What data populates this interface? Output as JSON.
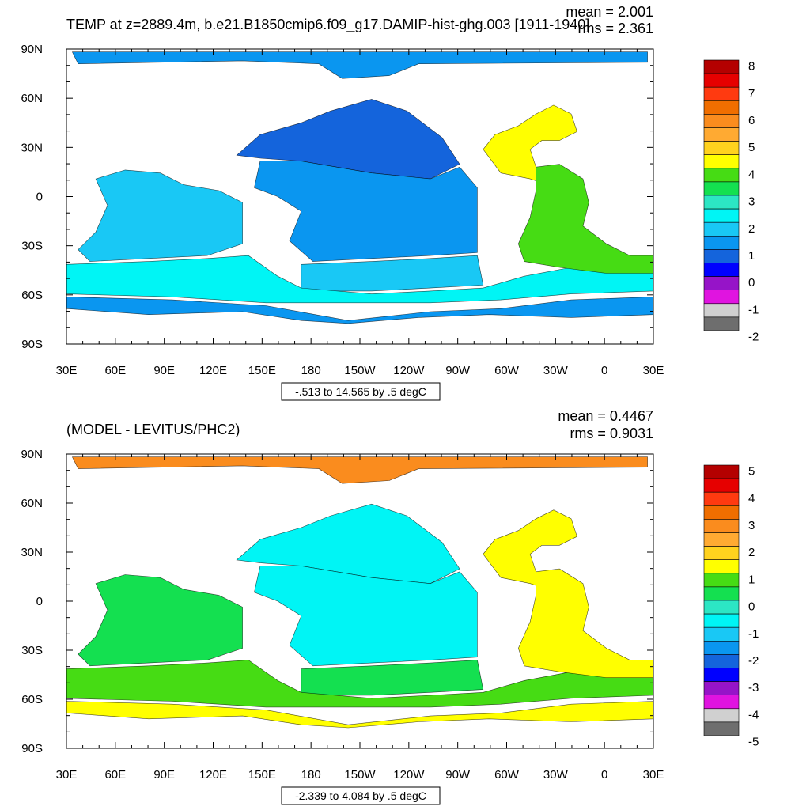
{
  "colors": {
    "top_palette": [
      "#6e6e6e",
      "#d0d0d0",
      "#e014e0",
      "#9614c8",
      "#0000ff",
      "#1464dc",
      "#0a96f0",
      "#19c8f5",
      "#00f5f5",
      "#2ce6c4",
      "#14e050",
      "#46dc14",
      "#ffff00",
      "#ffd21e",
      "#ffaa32",
      "#fa8c1e",
      "#f06e00",
      "#ff3a10",
      "#e60000",
      "#b40000"
    ],
    "bottom_palette": [
      "#6e6e6e",
      "#d0d0d0",
      "#e014e0",
      "#9614c8",
      "#0000ff",
      "#1464dc",
      "#0a96f0",
      "#19c8f5",
      "#00f5f5",
      "#2ce6c4",
      "#14e050",
      "#46dc14",
      "#ffff00",
      "#ffd21e",
      "#ffaa32",
      "#fa8c1e",
      "#f06e00",
      "#ff3a10",
      "#e60000",
      "#b40000"
    ]
  },
  "chart_data": [
    {
      "type": "heatmap",
      "title": "TEMP at z=2889.4m, b.e21.B1850cmip6.f09_g17.DAMIP-hist-ghg.003 [1911-1940]",
      "stats": {
        "mean": "mean = 2.001",
        "rms": "rms = 2.361"
      },
      "range_label": "-.513 to 14.565 by .5 degC",
      "x_ticks": [
        "30E",
        "60E",
        "90E",
        "120E",
        "150E",
        "180",
        "150W",
        "120W",
        "90W",
        "60W",
        "30W",
        "0",
        "30E"
      ],
      "y_ticks": [
        "90N",
        "60N",
        "30N",
        "0",
        "30S",
        "60S",
        "90S"
      ],
      "ylim": [
        -90,
        90
      ],
      "colorbar_labels": [
        "8",
        "7",
        "6",
        "5",
        "4",
        "3",
        "2",
        "1",
        "0",
        "-1",
        "-2"
      ],
      "colorbar_range": [
        -2,
        8
      ],
      "colorbar_step": 0.5,
      "regions": {
        "arctic": 1.2,
        "north_pacific": 0.8,
        "central_pacific": 1.3,
        "south_pacific": 1.6,
        "indian": 1.7,
        "southern_ocean": 2.0,
        "deep_south": 1.1,
        "north_atlantic": 4.3,
        "south_atlantic": 3.7
      }
    },
    {
      "type": "heatmap",
      "title": "(MODEL - LEVITUS/PHC2)",
      "stats": {
        "mean": "mean = 0.4467",
        "rms": "rms = 0.9031"
      },
      "range_label": "-2.339 to 4.084 by .5 degC",
      "x_ticks": [
        "30E",
        "60E",
        "90E",
        "120E",
        "150E",
        "180",
        "150W",
        "120W",
        "90W",
        "60W",
        "30W",
        "0",
        "30E"
      ],
      "y_ticks": [
        "90N",
        "60N",
        "30N",
        "0",
        "30S",
        "60S",
        "90S"
      ],
      "ylim": [
        -90,
        90
      ],
      "colorbar_labels": [
        "5",
        "4",
        "3",
        "2",
        "1",
        "0",
        "-1",
        "-2",
        "-3",
        "-4",
        "-5"
      ],
      "colorbar_range": [
        -5,
        5
      ],
      "colorbar_step": 0.5,
      "regions": {
        "arctic": 2.6,
        "north_pacific": -0.6,
        "central_pacific": -0.7,
        "south_pacific": 0.3,
        "indian": 0.3,
        "southern_ocean": 0.6,
        "deep_south": 1.2,
        "north_atlantic": 1.3,
        "south_atlantic": 1.2
      }
    }
  ]
}
